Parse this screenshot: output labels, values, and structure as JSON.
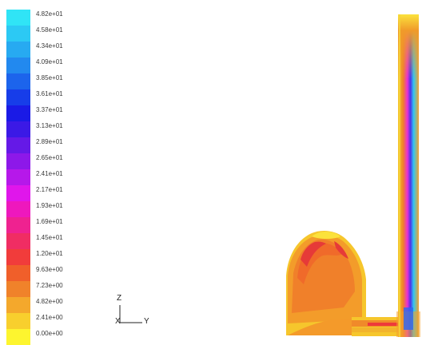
{
  "legend": {
    "labels": [
      "4.82e+01",
      "4.58e+01",
      "4.34e+01",
      "4.09e+01",
      "3.85e+01",
      "3.61e+01",
      "3.37e+01",
      "3.13e+01",
      "2.89e+01",
      "2.65e+01",
      "2.41e+01",
      "2.17e+01",
      "1.93e+01",
      "1.69e+01",
      "1.45e+01",
      "1.20e+01",
      "9.63e+00",
      "7.23e+00",
      "4.82e+00",
      "2.41e+00",
      "0.00e+00"
    ],
    "colors": [
      "#30e4f6",
      "#2cc9f4",
      "#27aaf1",
      "#2289ef",
      "#1c64ec",
      "#173de9",
      "#1a1ae6",
      "#3b19e6",
      "#6519e7",
      "#8d18e9",
      "#b618ea",
      "#e016eb",
      "#ee18bd",
      "#ef2290",
      "#f02d63",
      "#f13c3b",
      "#f05f2a",
      "#f0822a",
      "#f4a82c",
      "#f8cf2d",
      "#fdf52f"
    ]
  },
  "axes": {
    "z_label": "Z",
    "x_label": "X",
    "y_label": "Y"
  }
}
